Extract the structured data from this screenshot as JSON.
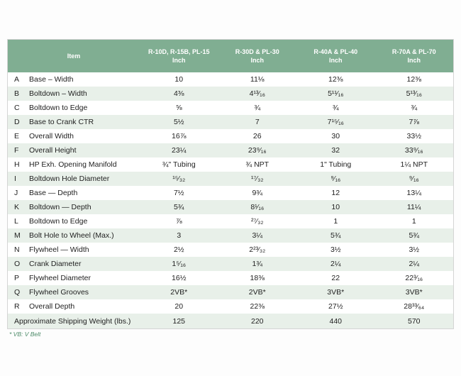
{
  "table": {
    "item_header": "Item",
    "columns": [
      {
        "line1": "R-10D, R-15B, PL-15",
        "line2": "Inch"
      },
      {
        "line1": "R-30D & PL-30",
        "line2": "Inch"
      },
      {
        "line1": "R-40A & PL-40",
        "line2": "Inch"
      },
      {
        "line1": "R-70A & PL-70",
        "line2": "Inch"
      }
    ],
    "rows": [
      {
        "letter": "A",
        "item": "Base – Width",
        "values": [
          "10",
          "11⅛",
          "12⅜",
          "12⅜"
        ]
      },
      {
        "letter": "B",
        "item": "Boltdown – Width",
        "values": [
          "4⅜",
          "4¹³⁄₁₆",
          "5¹¹⁄₁₆",
          "5¹³⁄₁₆"
        ]
      },
      {
        "letter": "C",
        "item": "Boltdown to Edge",
        "values": [
          "⅝",
          "¾",
          "¾",
          "¾"
        ]
      },
      {
        "letter": "D",
        "item": "Base to Crank CTR",
        "values": [
          "5½",
          "7",
          "7¹⁵⁄₁₆",
          "7⅞"
        ]
      },
      {
        "letter": "E",
        "item": "Overall Width",
        "values": [
          "16⅞",
          "26",
          "30",
          "33½"
        ]
      },
      {
        "letter": "F",
        "item": "Overall Height",
        "values": [
          "23¼",
          "23⁹⁄₁₆",
          "32",
          "33⁹⁄₁₆"
        ]
      },
      {
        "letter": "H",
        "item": "HP Exh. Opening Manifold",
        "values": [
          "¾\" Tubing",
          "¾ NPT",
          "1\" Tubing",
          "1¼ NPT"
        ]
      },
      {
        "letter": "I",
        "item": "Boltdown Hole Diameter",
        "values": [
          "¹⁵⁄₃₂",
          "¹⁷⁄₃₂",
          "⁹⁄₁₆",
          "⁹⁄₁₆"
        ]
      },
      {
        "letter": "J",
        "item": "Base — Depth",
        "values": [
          "7½",
          "9¾",
          "12",
          "13¼"
        ]
      },
      {
        "letter": "K",
        "item": "Boltdown — Depth",
        "values": [
          "5¾",
          "8¹⁄₁₆",
          "10",
          "11¼"
        ]
      },
      {
        "letter": "L",
        "item": "Boltdown to Edge",
        "values": [
          "⅞",
          "²⁷⁄₃₂",
          "1",
          "1"
        ]
      },
      {
        "letter": "M",
        "item": "Bolt Hole to Wheel (Max.)",
        "values": [
          "3",
          "3¼",
          "5¾",
          "5¾"
        ]
      },
      {
        "letter": "N",
        "item": "Flywheel — Width",
        "values": [
          "2½",
          "2²³⁄₃₂",
          "3½",
          "3½"
        ]
      },
      {
        "letter": "O",
        "item": "Crank Diameter",
        "values": [
          "1⁵⁄₁₆",
          "1¾",
          "2¼",
          "2¼"
        ]
      },
      {
        "letter": "P",
        "item": "Flywheel Diameter",
        "values": [
          "16½",
          "18⅜",
          "22",
          "22³⁄₁₆"
        ]
      },
      {
        "letter": "Q",
        "item": "Flywheel Grooves",
        "values": [
          "2VB*",
          "2VB*",
          "3VB*",
          "3VB*"
        ]
      },
      {
        "letter": "R",
        "item": "Overall Depth",
        "values": [
          "20",
          "22⅜",
          "27½",
          "28³³⁄₆₄"
        ]
      }
    ],
    "footer_row": {
      "label": "Approximate Shipping Weight (lbs.)",
      "values": [
        "125",
        "220",
        "440",
        "570"
      ]
    }
  },
  "footnote": "* VB: V Belt",
  "colors": {
    "header_green": "#80ae92",
    "alt_row_green": "#e8f0e9",
    "footnote_green": "#4e8c6a",
    "text": "#222222",
    "border": "#d4d4d4"
  }
}
